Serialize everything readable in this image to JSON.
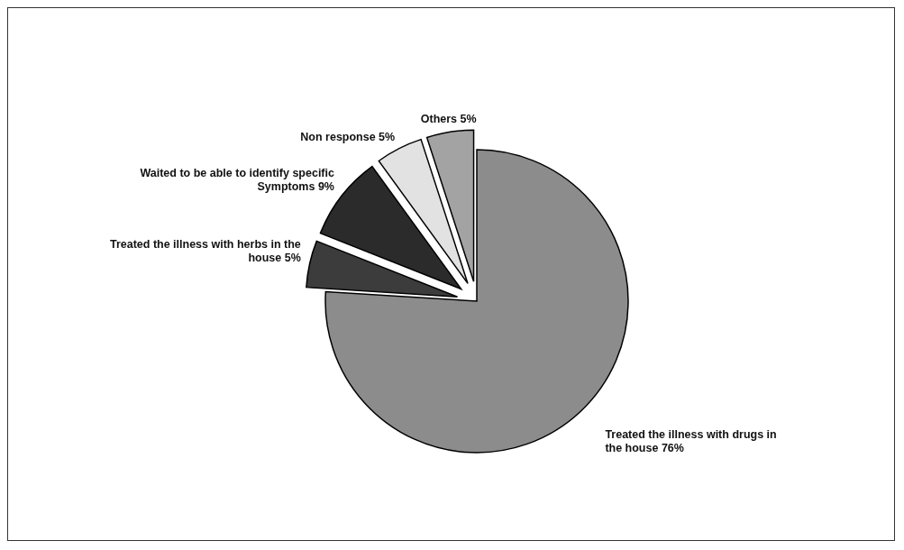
{
  "chart_data": {
    "type": "pie",
    "categories": [
      "Treated the illness with drugs in the house",
      "Treated the illness with herbs in the house",
      "Waited to be able to identify specific Symptoms",
      "Non response",
      "Others"
    ],
    "values": [
      76,
      5,
      9,
      5,
      5
    ],
    "colors": [
      "#8c8c8c",
      "#3c3c3c",
      "#2b2b2b",
      "#e2e2e2",
      "#a3a3a3"
    ],
    "value_labels": [
      "76%",
      "5%",
      "9%",
      "5%",
      "5%"
    ]
  }
}
